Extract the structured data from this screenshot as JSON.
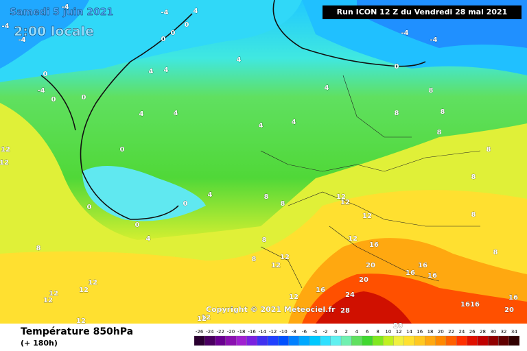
{
  "header": {
    "date": "Samedi 5 juin 2021",
    "time": "2:00 locale",
    "run": "Run ICON 12 Z du Vendredi 28 mai 2021"
  },
  "copyright": "Copyright © 2021 Meteociel.fr",
  "footer": {
    "title": "Température 850hPa",
    "lead": "(+ 180h)"
  },
  "scale": [
    {
      "label": "-26",
      "color": "#2a0030"
    },
    {
      "label": "-24",
      "color": "#4a0060"
    },
    {
      "label": "-22",
      "color": "#6a0090"
    },
    {
      "label": "-20",
      "color": "#8a10b0"
    },
    {
      "label": "-18",
      "color": "#a020d0"
    },
    {
      "label": "-16",
      "color": "#7a20e0"
    },
    {
      "label": "-14",
      "color": "#4030f0"
    },
    {
      "label": "-12",
      "color": "#2040ff"
    },
    {
      "label": "-10",
      "color": "#0050ff"
    },
    {
      "label": "-8",
      "color": "#0080ff"
    },
    {
      "label": "-6",
      "color": "#00a8ff"
    },
    {
      "label": "-4",
      "color": "#00c8ff"
    },
    {
      "label": "-2",
      "color": "#30e0ff"
    },
    {
      "label": "0",
      "color": "#60f0f0"
    },
    {
      "label": "2",
      "color": "#70f0b0"
    },
    {
      "label": "4",
      "color": "#60e060"
    },
    {
      "label": "6",
      "color": "#40d830"
    },
    {
      "label": "8",
      "color": "#80e820"
    },
    {
      "label": "10",
      "color": "#c0f020"
    },
    {
      "label": "12",
      "color": "#f0f040"
    },
    {
      "label": "14",
      "color": "#ffe030"
    },
    {
      "label": "16",
      "color": "#ffc820"
    },
    {
      "label": "18",
      "color": "#ffa810"
    },
    {
      "label": "20",
      "color": "#ff8800"
    },
    {
      "label": "22",
      "color": "#ff6000"
    },
    {
      "label": "24",
      "color": "#ff3000"
    },
    {
      "label": "26",
      "color": "#e01000"
    },
    {
      "label": "28",
      "color": "#c00000"
    },
    {
      "label": "30",
      "color": "#900000"
    },
    {
      "label": "32",
      "color": "#600000"
    },
    {
      "label": "34",
      "color": "#300000"
    }
  ],
  "contour_labels": [
    "-4",
    "-4",
    "4",
    "-4",
    "0",
    "0",
    "0",
    "-4",
    "-4",
    "-4",
    "0",
    "-4",
    "0",
    "0",
    "4",
    "4",
    "4",
    "0",
    "4",
    "8",
    "4",
    "4",
    "4",
    "4",
    "8",
    "8",
    "8",
    "8",
    "12",
    "12",
    "0",
    "8",
    "0",
    "0",
    "4",
    "8",
    "8",
    "12",
    "12",
    "12",
    "8",
    "0",
    "4",
    "8",
    "8",
    "12",
    "16",
    "8",
    "12",
    "12",
    "20",
    "16",
    "16",
    "16",
    "20",
    "12",
    "12",
    "12",
    "12",
    "12",
    "16",
    "24",
    "16",
    "16",
    "16",
    "20",
    "28",
    "12",
    "12",
    "12",
    "8",
    "20"
  ]
}
